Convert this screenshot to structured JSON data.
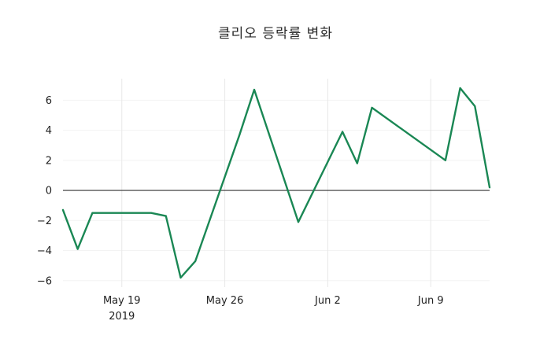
{
  "title": "클리오 등락률 변화",
  "colors": {
    "line": "#1a8754",
    "grid_vertical": "#e8e8e8",
    "grid_horizontal": "#f3f3f3",
    "zero_line": "#333333",
    "tick_text": "#222222",
    "background": "#ffffff"
  },
  "chart_data": {
    "type": "line",
    "title": "클리오 등락률 변화",
    "xlabel": "",
    "ylabel": "",
    "legend": "none",
    "grid": "vertical-weekly-light",
    "zero_line": true,
    "xlim": [
      "2019-05-15",
      "2019-06-13"
    ],
    "ylim": [
      -6.43,
      7.43
    ],
    "yticks": [
      6,
      4,
      2,
      0,
      -2,
      -4,
      -6
    ],
    "xticks": [
      {
        "date": "2019-05-19",
        "label": "May 19",
        "sublabel": "2019"
      },
      {
        "date": "2019-05-26",
        "label": "May 26",
        "sublabel": ""
      },
      {
        "date": "2019-06-02",
        "label": "Jun 2",
        "sublabel": ""
      },
      {
        "date": "2019-06-09",
        "label": "Jun 9",
        "sublabel": ""
      }
    ],
    "series": [
      {
        "name": "등락률",
        "points": [
          {
            "date": "2019-05-15",
            "value": -1.3
          },
          {
            "date": "2019-05-16",
            "value": -3.9
          },
          {
            "date": "2019-05-17",
            "value": -1.5
          },
          {
            "date": "2019-05-21",
            "value": -1.5
          },
          {
            "date": "2019-05-22",
            "value": -1.7
          },
          {
            "date": "2019-05-23",
            "value": -5.8
          },
          {
            "date": "2019-05-24",
            "value": -4.7
          },
          {
            "date": "2019-05-27",
            "value": 3.7
          },
          {
            "date": "2019-05-28",
            "value": 6.7
          },
          {
            "date": "2019-05-31",
            "value": -2.1
          },
          {
            "date": "2019-06-03",
            "value": 3.9
          },
          {
            "date": "2019-06-04",
            "value": 1.8
          },
          {
            "date": "2019-06-05",
            "value": 5.5
          },
          {
            "date": "2019-06-10",
            "value": 2.0
          },
          {
            "date": "2019-06-11",
            "value": 6.8
          },
          {
            "date": "2019-06-12",
            "value": 5.6
          },
          {
            "date": "2019-06-13",
            "value": 0.2
          }
        ]
      }
    ]
  }
}
